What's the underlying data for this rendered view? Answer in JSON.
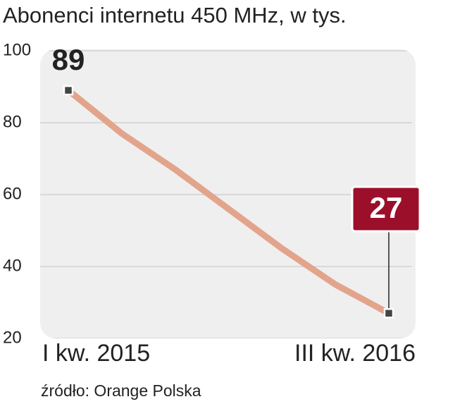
{
  "chart_data": {
    "type": "line",
    "title": "Abonenci internetu 450 MHz, w tys.",
    "source": "źródło: Orange Polska",
    "categories": [
      "I kw. 2015",
      null,
      null,
      null,
      null,
      null,
      "III kw. 2016"
    ],
    "series": [
      {
        "name": "Abonenci",
        "color": "#e3a48c",
        "values": [
          89,
          77,
          67,
          56,
          45,
          35,
          27
        ]
      }
    ],
    "ylim": [
      20,
      100
    ],
    "yticks": [
      20,
      40,
      60,
      80,
      100
    ],
    "grid": true,
    "highlight_color": "#9c0f2b"
  }
}
